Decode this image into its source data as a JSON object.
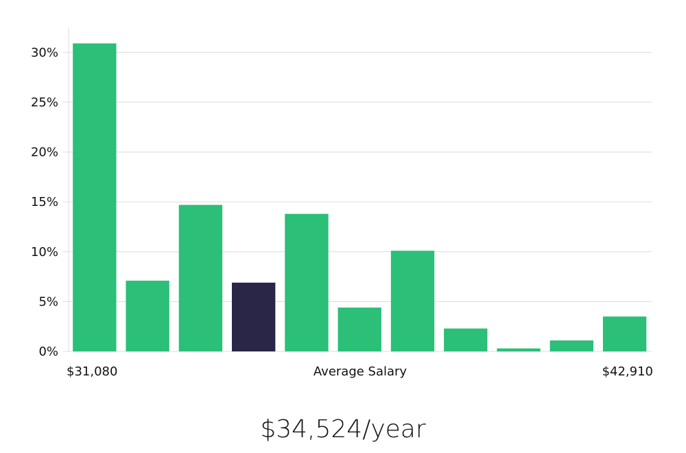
{
  "chart_data": {
    "type": "bar",
    "values": [
      30.9,
      7.1,
      14.7,
      6.9,
      13.8,
      4.4,
      10.1,
      2.3,
      0.3,
      1.1,
      3.5
    ],
    "highlight_index": 3,
    "ylim": [
      0,
      32.5
    ],
    "yticks": [
      0,
      5,
      10,
      15,
      20,
      25,
      30
    ],
    "ytick_labels": [
      "0%",
      "5%",
      "10%",
      "15%",
      "20%",
      "25%",
      "30%"
    ],
    "xlabel_left": "$31,080",
    "xlabel_center": "Average Salary",
    "xlabel_right": "$42,910",
    "grid": true,
    "colors": {
      "bar": "#2bbf78",
      "highlight": "#2a2647",
      "grid": "#dcdcdc"
    }
  },
  "headline": {
    "salary": "$34,524/year"
  }
}
